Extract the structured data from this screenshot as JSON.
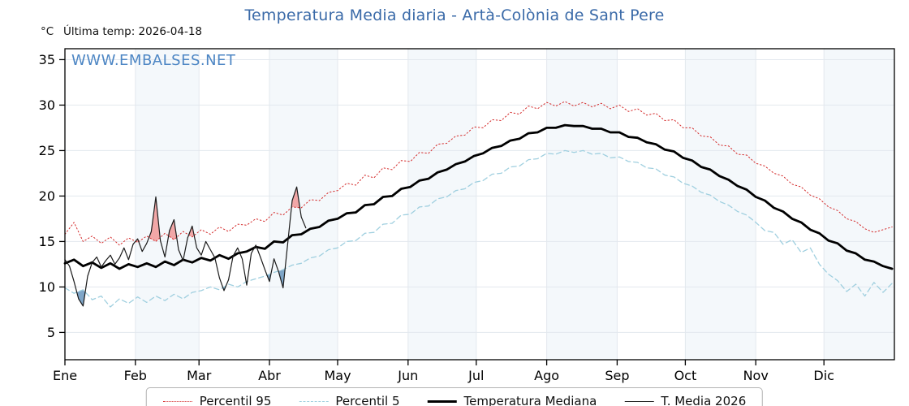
{
  "title": "Temperatura Media diaria - Artà-Colònia de Sant Pere",
  "header": {
    "unit_label": "°C",
    "last_temp": "Última temp: 2026-04-18"
  },
  "watermark": {
    "text": "WWW.EMBALSES.NET"
  },
  "chart_data": {
    "type": "line",
    "title": "Temperatura Media diaria - Artà-Colònia de Sant Pere",
    "xlabel": "",
    "ylabel": "°C",
    "x_unit": "day_of_year",
    "xlim": [
      0,
      365
    ],
    "ylim": [
      2,
      36.2
    ],
    "yticks": [
      5,
      10,
      15,
      20,
      25,
      30,
      35
    ],
    "grid": true,
    "legend_position": "bottom-center",
    "months": [
      {
        "label": "Ene",
        "day": 0
      },
      {
        "label": "Feb",
        "day": 31
      },
      {
        "label": "Mar",
        "day": 59
      },
      {
        "label": "Abr",
        "day": 90
      },
      {
        "label": "May",
        "day": 120
      },
      {
        "label": "Jun",
        "day": 151
      },
      {
        "label": "Jul",
        "day": 181
      },
      {
        "label": "Ago",
        "day": 212
      },
      {
        "label": "Sep",
        "day": 243
      },
      {
        "label": "Oct",
        "day": 273
      },
      {
        "label": "Nov",
        "day": 304
      },
      {
        "label": "Dic",
        "day": 334
      }
    ],
    "colors": {
      "grid": "#e3e8ee",
      "band": "#f4f8fb",
      "frame": "#000000",
      "fill_above_p95": "#ef8f8f",
      "fill_below_p5": "#5b8db8"
    },
    "series": [
      {
        "id": "p95",
        "name": "Percentil 95",
        "color": "#d42a2a",
        "width": 1,
        "dash": "1.5 2.8",
        "x_start": 0,
        "x_step_days": 4,
        "values": [
          15.8,
          17.1,
          15.0,
          15.6,
          14.8,
          15.5,
          14.6,
          15.4,
          14.9,
          15.6,
          15.0,
          15.9,
          15.2,
          16.1,
          15.5,
          16.3,
          15.8,
          16.6,
          16.1,
          16.9,
          16.8,
          17.5,
          17.2,
          18.2,
          17.9,
          18.8,
          18.7,
          19.6,
          19.5,
          20.4,
          20.6,
          21.4,
          21.2,
          22.3,
          22.0,
          23.1,
          22.9,
          23.9,
          23.8,
          24.8,
          24.7,
          25.7,
          25.8,
          26.6,
          26.7,
          27.6,
          27.5,
          28.4,
          28.3,
          29.2,
          29.0,
          29.9,
          29.6,
          30.3,
          29.9,
          30.4,
          29.9,
          30.3,
          29.8,
          30.2,
          29.6,
          30.0,
          29.3,
          29.6,
          28.9,
          29.1,
          28.3,
          28.4,
          27.5,
          27.5,
          26.6,
          26.5,
          25.6,
          25.5,
          24.6,
          24.5,
          23.6,
          23.3,
          22.5,
          22.2,
          21.3,
          21.0,
          20.1,
          19.7,
          18.8,
          18.4,
          17.5,
          17.2,
          16.4,
          16.0,
          16.3,
          16.6
        ]
      },
      {
        "id": "p5",
        "name": "Percentil 5",
        "color": "#9fcfdf",
        "width": 1.3,
        "dash": "6 4",
        "x_start": 0,
        "x_step_days": 4,
        "values": [
          9.9,
          9.3,
          9.7,
          8.6,
          9.0,
          7.8,
          8.7,
          8.2,
          8.9,
          8.3,
          9.0,
          8.5,
          9.2,
          8.7,
          9.4,
          9.6,
          10.0,
          9.7,
          10.3,
          10.0,
          10.6,
          10.9,
          11.2,
          11.6,
          11.9,
          12.4,
          12.6,
          13.2,
          13.4,
          14.1,
          14.3,
          15.0,
          15.1,
          15.9,
          16.0,
          16.9,
          17.0,
          17.9,
          18.0,
          18.8,
          18.9,
          19.7,
          19.9,
          20.6,
          20.8,
          21.5,
          21.7,
          22.4,
          22.5,
          23.2,
          23.3,
          24.0,
          24.1,
          24.7,
          24.6,
          25.0,
          24.8,
          25.0,
          24.6,
          24.7,
          24.2,
          24.3,
          23.8,
          23.7,
          23.1,
          23.0,
          22.3,
          22.1,
          21.4,
          21.1,
          20.4,
          20.1,
          19.4,
          19.0,
          18.3,
          17.9,
          17.1,
          16.2,
          16.0,
          14.7,
          15.2,
          13.8,
          14.3,
          12.5,
          11.4,
          10.7,
          9.5,
          10.3,
          9.0,
          10.5,
          9.4,
          10.4
        ]
      },
      {
        "id": "mediana",
        "name": "Temperatura Mediana",
        "color": "#000000",
        "width": 2.8,
        "dash": "",
        "x_start": 0,
        "x_step_days": 4,
        "values": [
          12.6,
          13.0,
          12.3,
          12.7,
          12.1,
          12.6,
          12.0,
          12.5,
          12.2,
          12.6,
          12.2,
          12.8,
          12.4,
          13.0,
          12.7,
          13.2,
          12.9,
          13.5,
          13.1,
          13.7,
          13.9,
          14.4,
          14.2,
          15.0,
          14.9,
          15.7,
          15.8,
          16.4,
          16.6,
          17.3,
          17.5,
          18.1,
          18.2,
          19.0,
          19.1,
          19.9,
          20.0,
          20.8,
          21.0,
          21.7,
          21.9,
          22.6,
          22.9,
          23.5,
          23.8,
          24.4,
          24.7,
          25.3,
          25.5,
          26.1,
          26.3,
          26.9,
          27.0,
          27.5,
          27.5,
          27.8,
          27.7,
          27.7,
          27.4,
          27.4,
          27.0,
          27.0,
          26.5,
          26.4,
          25.9,
          25.7,
          25.1,
          24.9,
          24.2,
          23.9,
          23.2,
          22.9,
          22.2,
          21.8,
          21.1,
          20.7,
          19.9,
          19.5,
          18.7,
          18.3,
          17.5,
          17.1,
          16.3,
          15.9,
          15.1,
          14.8,
          14.0,
          13.7,
          13.0,
          12.8,
          12.3,
          12.0
        ]
      },
      {
        "id": "t2026",
        "name": "T. Media 2026",
        "color": "#1a1a1a",
        "width": 1.2,
        "dash": "",
        "x_start": 0,
        "x_step_days": 2,
        "values": [
          13.0,
          12.3,
          10.6,
          8.7,
          7.9,
          11.2,
          12.7,
          13.3,
          12.2,
          12.9,
          13.5,
          12.5,
          13.2,
          14.3,
          13.0,
          14.7,
          15.3,
          13.9,
          14.8,
          16.1,
          19.9,
          15.1,
          13.3,
          16.2,
          17.4,
          14.1,
          12.9,
          15.4,
          16.7,
          14.3,
          13.5,
          15.0,
          14.1,
          13.2,
          11.0,
          9.6,
          10.8,
          13.4,
          14.3,
          13.1,
          10.2,
          13.7,
          14.6,
          13.3,
          11.9,
          10.6,
          13.1,
          11.7,
          9.9,
          14.7,
          19.5,
          21.0,
          17.7,
          16.5
        ]
      }
    ]
  }
}
